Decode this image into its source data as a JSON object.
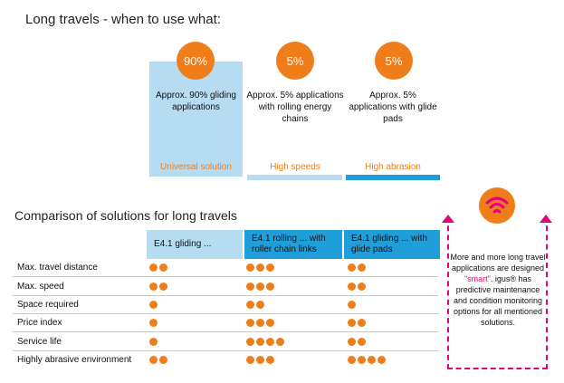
{
  "header": {
    "title": "Long travels - when to use what:"
  },
  "cards": [
    {
      "percent": "90%",
      "description": "Approx. 90% gliding applications",
      "tag": "Universal solution"
    },
    {
      "percent": "5%",
      "description": "Approx. 5% applications with rolling energy chains",
      "tag": "High speeds"
    },
    {
      "percent": "5%",
      "description": "Approx. 5% applications with glide pads",
      "tag": "High abrasion"
    }
  ],
  "comparison": {
    "title": "Comparison of solutions for long travels",
    "columns": [
      "E4.1 gliding ...",
      "E4.1 rolling ... with roller chain links",
      "E4.1 gliding ... with glide pads"
    ],
    "rows": [
      {
        "label": "Max. travel distance",
        "ratings": [
          2,
          3,
          2
        ]
      },
      {
        "label": "Max. speed",
        "ratings": [
          2,
          3,
          2
        ]
      },
      {
        "label": "Space required",
        "ratings": [
          1,
          2,
          1
        ]
      },
      {
        "label": "Price index",
        "ratings": [
          1,
          3,
          2
        ]
      },
      {
        "label": "Service life",
        "ratings": [
          1,
          4,
          2
        ]
      },
      {
        "label": "Highly abrasive environment",
        "ratings": [
          2,
          3,
          4
        ]
      }
    ]
  },
  "info_box": {
    "icon": "wireless-signal-icon",
    "text_before": "More and more long travel applications are designed ",
    "smart": "\"smart\"",
    "text_after": ". igus® has predictive maintenance and condition monitoring options for all mentioned solutions."
  },
  "colors": {
    "orange": "#ef7d1a",
    "light_blue": "#b6dcf2",
    "blue": "#1f9ed9",
    "magenta": "#e6007e"
  }
}
